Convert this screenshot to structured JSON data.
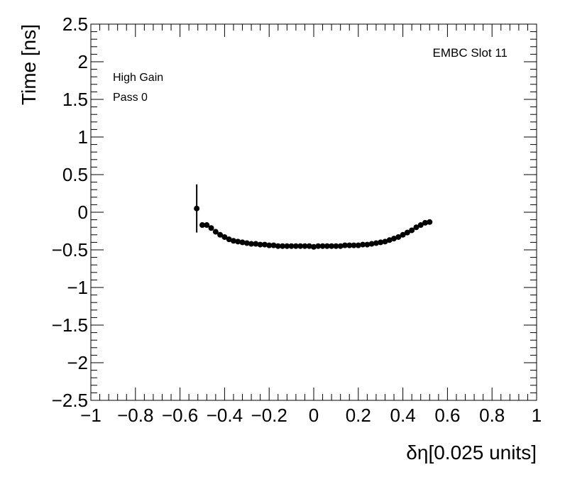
{
  "chart_data": {
    "type": "scatter",
    "xlabel": "δη[0.025 units]",
    "ylabel": "Time [ns]",
    "xlim": [
      -1,
      1
    ],
    "ylim": [
      -2.5,
      2.5
    ],
    "x_major_ticks": [
      -1,
      -0.8,
      -0.6,
      -0.4,
      -0.2,
      0,
      0.2,
      0.4,
      0.6,
      0.8,
      1
    ],
    "x_tick_labels": [
      "−1",
      "−0.8",
      "−0.6",
      "−0.4",
      "−0.2",
      "0",
      "0.2",
      "0.4",
      "0.6",
      "0.8",
      "1"
    ],
    "y_major_ticks": [
      -2.5,
      -2,
      -1.5,
      -1,
      -0.5,
      0,
      0.5,
      1,
      1.5,
      2,
      2.5
    ],
    "y_tick_labels": [
      "−2.5",
      "−2",
      "−1.5",
      "−1",
      "−0.5",
      "0",
      "0.5",
      "1",
      "1.5",
      "2",
      "2.5"
    ],
    "grid": false,
    "annotations": {
      "gain": "High Gain",
      "pass": "Pass 0",
      "slot": "EMBC Slot 11"
    },
    "series": [
      {
        "marker_color": "#000000",
        "points": [
          {
            "x": -0.525,
            "y": 0.05,
            "err": 0.32
          },
          {
            "x": -0.5,
            "y": -0.17,
            "err": 0.0
          },
          {
            "x": -0.48,
            "y": -0.17,
            "err": 0.0
          },
          {
            "x": -0.46,
            "y": -0.21,
            "err": 0.0
          },
          {
            "x": -0.44,
            "y": -0.26,
            "err": 0.0
          },
          {
            "x": -0.42,
            "y": -0.3,
            "err": 0.0
          },
          {
            "x": -0.4,
            "y": -0.33,
            "err": 0.0
          },
          {
            "x": -0.38,
            "y": -0.36,
            "err": 0.0
          },
          {
            "x": -0.36,
            "y": -0.38,
            "err": 0.0
          },
          {
            "x": -0.34,
            "y": -0.39,
            "err": 0.0
          },
          {
            "x": -0.32,
            "y": -0.4,
            "err": 0.0
          },
          {
            "x": -0.3,
            "y": -0.41,
            "err": 0.0
          },
          {
            "x": -0.28,
            "y": -0.42,
            "err": 0.0
          },
          {
            "x": -0.26,
            "y": -0.42,
            "err": 0.0
          },
          {
            "x": -0.24,
            "y": -0.43,
            "err": 0.0
          },
          {
            "x": -0.22,
            "y": -0.43,
            "err": 0.0
          },
          {
            "x": -0.2,
            "y": -0.44,
            "err": 0.0
          },
          {
            "x": -0.18,
            "y": -0.44,
            "err": 0.0
          },
          {
            "x": -0.16,
            "y": -0.45,
            "err": 0.0
          },
          {
            "x": -0.14,
            "y": -0.45,
            "err": 0.0
          },
          {
            "x": -0.12,
            "y": -0.45,
            "err": 0.0
          },
          {
            "x": -0.1,
            "y": -0.45,
            "err": 0.0
          },
          {
            "x": -0.08,
            "y": -0.45,
            "err": 0.0
          },
          {
            "x": -0.06,
            "y": -0.45,
            "err": 0.0
          },
          {
            "x": -0.04,
            "y": -0.45,
            "err": 0.0
          },
          {
            "x": -0.02,
            "y": -0.45,
            "err": 0.0
          },
          {
            "x": 0.0,
            "y": -0.46,
            "err": 0.0
          },
          {
            "x": 0.02,
            "y": -0.45,
            "err": 0.0
          },
          {
            "x": 0.04,
            "y": -0.45,
            "err": 0.0
          },
          {
            "x": 0.06,
            "y": -0.45,
            "err": 0.0
          },
          {
            "x": 0.08,
            "y": -0.45,
            "err": 0.0
          },
          {
            "x": 0.1,
            "y": -0.45,
            "err": 0.0
          },
          {
            "x": 0.12,
            "y": -0.45,
            "err": 0.0
          },
          {
            "x": 0.14,
            "y": -0.44,
            "err": 0.0
          },
          {
            "x": 0.16,
            "y": -0.44,
            "err": 0.0
          },
          {
            "x": 0.18,
            "y": -0.44,
            "err": 0.0
          },
          {
            "x": 0.2,
            "y": -0.44,
            "err": 0.0
          },
          {
            "x": 0.22,
            "y": -0.43,
            "err": 0.0
          },
          {
            "x": 0.24,
            "y": -0.43,
            "err": 0.0
          },
          {
            "x": 0.26,
            "y": -0.42,
            "err": 0.0
          },
          {
            "x": 0.28,
            "y": -0.41,
            "err": 0.0
          },
          {
            "x": 0.3,
            "y": -0.4,
            "err": 0.0
          },
          {
            "x": 0.32,
            "y": -0.39,
            "err": 0.0
          },
          {
            "x": 0.34,
            "y": -0.37,
            "err": 0.0
          },
          {
            "x": 0.36,
            "y": -0.35,
            "err": 0.0
          },
          {
            "x": 0.38,
            "y": -0.33,
            "err": 0.0
          },
          {
            "x": 0.4,
            "y": -0.3,
            "err": 0.0
          },
          {
            "x": 0.42,
            "y": -0.27,
            "err": 0.0
          },
          {
            "x": 0.44,
            "y": -0.24,
            "err": 0.0
          },
          {
            "x": 0.46,
            "y": -0.2,
            "err": 0.0
          },
          {
            "x": 0.48,
            "y": -0.17,
            "err": 0.0
          },
          {
            "x": 0.5,
            "y": -0.14,
            "err": 0.0
          },
          {
            "x": 0.52,
            "y": -0.13,
            "err": 0.0
          }
        ]
      }
    ]
  }
}
